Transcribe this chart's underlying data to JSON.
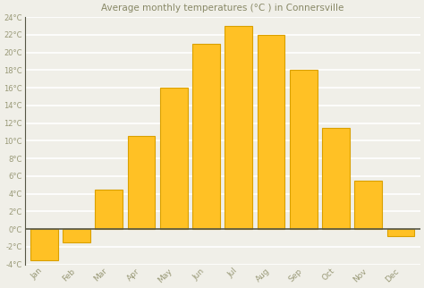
{
  "title": "Average monthly temperatures (°C ) in Connersville",
  "months": [
    "Jan",
    "Feb",
    "Mar",
    "Apr",
    "May",
    "Jun",
    "Jul",
    "Aug",
    "Sep",
    "Oct",
    "Nov",
    "Dec"
  ],
  "values": [
    -3.5,
    -1.5,
    4.5,
    10.5,
    16.0,
    21.0,
    23.0,
    22.0,
    18.0,
    11.5,
    5.5,
    -0.8
  ],
  "bar_color": "#FFC125",
  "bar_edge_color": "#DAA000",
  "background_color": "#F0EFE8",
  "grid_color": "#FFFFFF",
  "tick_color": "#999977",
  "title_color": "#888866",
  "axis_line_color": "#555544",
  "ylim": [
    -4,
    24
  ],
  "yticks": [
    -4,
    -2,
    0,
    2,
    4,
    6,
    8,
    10,
    12,
    14,
    16,
    18,
    20,
    22,
    24
  ]
}
